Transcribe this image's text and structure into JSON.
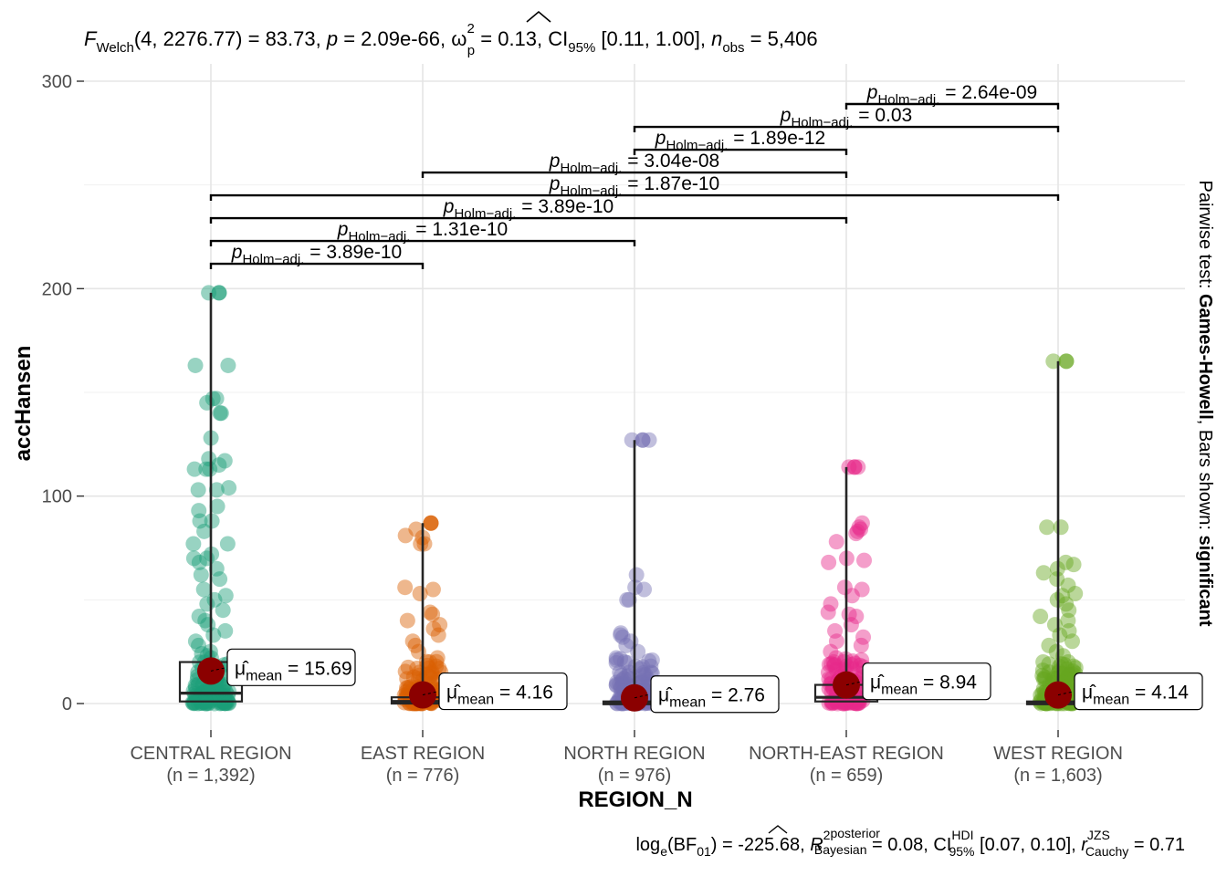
{
  "header": {
    "stat_text": "F Welch(4, 2276.77) = 83.73, p = 2.09e-66, ω̂²p = 0.13, CI95% [0.11, 1.00], nobs = 5,406"
  },
  "footer": {
    "bayes_text": "loge(BF01) = -225.68, R̂² posterior Bayesian = 0.08, CI HDI 95% [0.07, 0.10], r JZS Cauchy = 0.71"
  },
  "side_caption": {
    "prefix": "Pairwise test: ",
    "test": "Games-Howell",
    "middle": ", Bars shown: ",
    "shown": "significant"
  },
  "chart_data": {
    "type": "box-violin-scatter",
    "xlabel": "REGION_N",
    "ylabel": "accHansen",
    "ylim": [
      -12,
      303
    ],
    "yticks": [
      0,
      100,
      200,
      300
    ],
    "grid": true,
    "groups": [
      {
        "name": "CENTRAL REGION",
        "n_label": "(n = 1,392)",
        "color": "#1B9E77",
        "box": {
          "q1": 1,
          "median": 5,
          "q3": 20,
          "whisker_low": 0,
          "whisker_high": 198
        },
        "mean": 15.69,
        "mean_label": "15.69",
        "outliers": [
          198,
          163,
          163,
          147,
          147,
          145,
          140,
          140,
          128,
          118,
          117,
          115,
          113,
          113,
          113,
          104,
          103,
          103,
          95,
          93,
          88,
          88,
          83,
          77,
          77,
          72,
          70,
          70,
          68,
          65,
          62,
          60,
          55,
          52,
          50,
          48,
          45,
          42,
          40,
          38,
          35,
          33,
          30,
          28,
          25,
          24,
          23,
          22
        ]
      },
      {
        "name": "EAST REGION",
        "n_label": "(n = 776)",
        "color": "#D95F02",
        "box": {
          "q1": 0,
          "median": 1,
          "q3": 3,
          "whisker_low": 0,
          "whisker_high": 87
        },
        "mean": 4.16,
        "mean_label": "4.16",
        "outliers": [
          87,
          84,
          81,
          80,
          77,
          77,
          56,
          55,
          53,
          44,
          43,
          40,
          38,
          36,
          33,
          30,
          28,
          25,
          22,
          20,
          18,
          15,
          12,
          10,
          8,
          7
        ]
      },
      {
        "name": "NORTH REGION",
        "n_label": "(n = 976)",
        "color": "#7570B3",
        "box": {
          "q1": 0,
          "median": 0,
          "q3": 1,
          "whisker_low": 0,
          "whisker_high": 127
        },
        "mean": 2.76,
        "mean_label": "2.76",
        "outliers": [
          127,
          127,
          62,
          56,
          55,
          50,
          50,
          34,
          33,
          32,
          30,
          28,
          25,
          22,
          20,
          18,
          15,
          12,
          10,
          8,
          6,
          5,
          4
        ]
      },
      {
        "name": "NORTH-EAST REGION",
        "n_label": "(n = 659)",
        "color": "#E7298A",
        "box": {
          "q1": 1,
          "median": 3,
          "q3": 9,
          "whisker_low": 0,
          "whisker_high": 114
        },
        "mean": 8.94,
        "mean_label": "8.94",
        "outliers": [
          114,
          114,
          87,
          85,
          84,
          83,
          82,
          78,
          70,
          69,
          68,
          56,
          55,
          52,
          48,
          44,
          43,
          42,
          38,
          35,
          32,
          30,
          28,
          25,
          22,
          20,
          18,
          15,
          13,
          11
        ]
      },
      {
        "name": "WEST REGION",
        "n_label": "(n = 1,603)",
        "color": "#66A61E",
        "box": {
          "q1": 0,
          "median": 0,
          "q3": 1,
          "whisker_low": 0,
          "whisker_high": 165
        },
        "mean": 4.14,
        "mean_label": "4.14",
        "outliers": [
          165,
          85,
          85,
          68,
          67,
          65,
          63,
          60,
          57,
          53,
          52,
          50,
          48,
          45,
          42,
          40,
          38,
          35,
          33,
          30,
          28,
          25,
          23,
          20,
          18,
          16,
          14,
          12,
          10,
          8,
          6
        ]
      }
    ],
    "mean_color": "#8B0000",
    "pairwise": [
      {
        "from": 0,
        "to": 1,
        "y": 212,
        "p_value": "3.89e-10"
      },
      {
        "from": 0,
        "to": 2,
        "y": 223,
        "p_value": "1.31e-10"
      },
      {
        "from": 0,
        "to": 3,
        "y": 234,
        "p_value": "3.89e-10"
      },
      {
        "from": 0,
        "to": 4,
        "y": 245,
        "p_value": "1.87e-10"
      },
      {
        "from": 1,
        "to": 3,
        "y": 256,
        "p_value": "3.04e-08"
      },
      {
        "from": 2,
        "to": 3,
        "y": 267,
        "p_value": "1.89e-12"
      },
      {
        "from": 2,
        "to": 4,
        "y": 278,
        "p_value": "0.03"
      },
      {
        "from": 3,
        "to": 4,
        "y": 289,
        "p_value": "2.64e-09"
      }
    ],
    "p_label_prefix": "p",
    "p_label_subscript": "Holm−adj.",
    "mean_symbol": "μ̂",
    "mean_subscript": "mean"
  }
}
